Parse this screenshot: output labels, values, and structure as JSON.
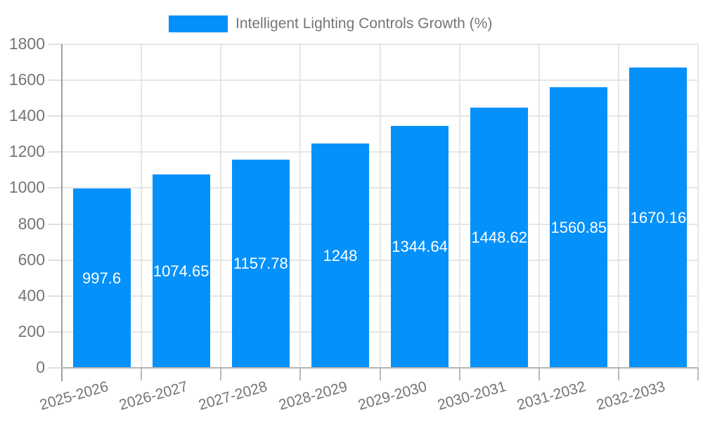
{
  "legend": {
    "label": "Intelligent Lighting Controls Growth (%)"
  },
  "chart_data": {
    "type": "bar",
    "title": "",
    "xlabel": "",
    "ylabel": "",
    "categories": [
      "2025-2026",
      "2026-2027",
      "2027-2028",
      "2028-2029",
      "2029-2030",
      "2030-2031",
      "2031-2032",
      "2032-2033"
    ],
    "series": [
      {
        "name": "Intelligent Lighting Controls Growth (%)",
        "values": [
          997.6,
          1074.65,
          1157.78,
          1248,
          1344.64,
          1448.62,
          1560.85,
          1670.16
        ]
      }
    ],
    "ylim": [
      0,
      1800
    ],
    "yticks": [
      0,
      200,
      400,
      600,
      800,
      1000,
      1200,
      1400,
      1600,
      1800
    ],
    "grid": true,
    "legend_position": "top",
    "colors": {
      "bar": "#0591fa",
      "bar_value_text": "#ffffff",
      "tick_text": "#757575",
      "gridline": "#e6e6e6",
      "y_axis_line": "#9e9e9e",
      "x_axis_line": "#b3b3b3"
    }
  }
}
